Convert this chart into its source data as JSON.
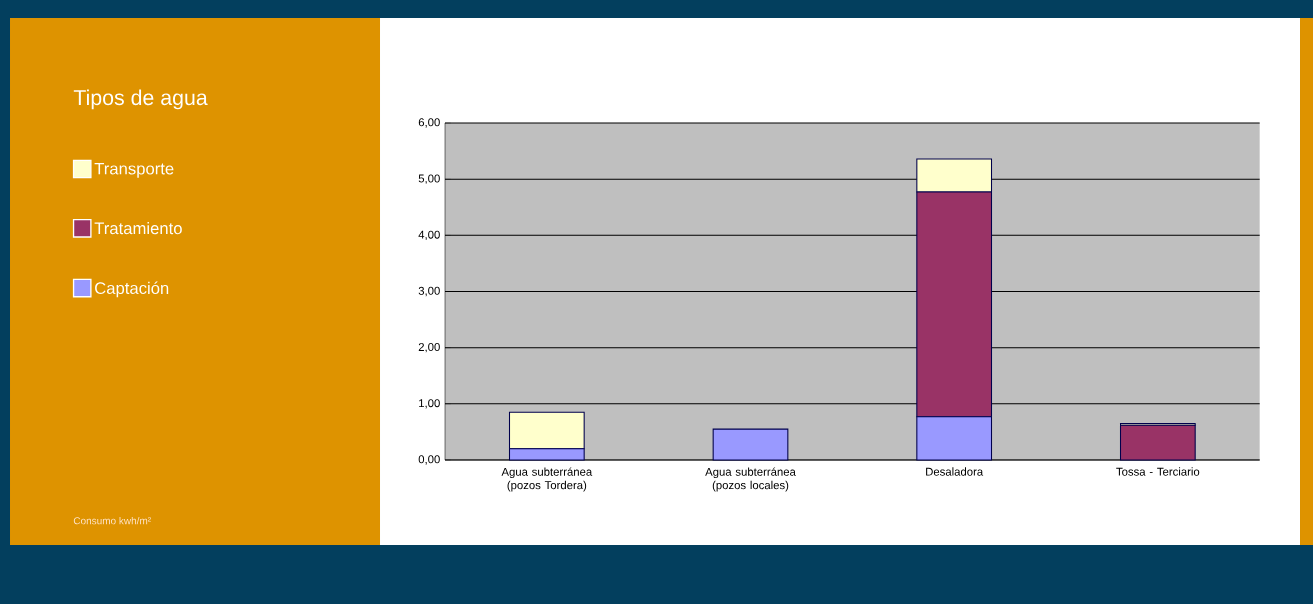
{
  "chart_data": {
    "type": "bar",
    "stacked": true,
    "categories": [
      "Agua subterránea (pozos Tordera)",
      "Agua subterránea (pozos locales)",
      "Desaladora",
      "Tossa - Terciario"
    ],
    "series": [
      {
        "name": "Captación",
        "color": "#9999ff",
        "values": [
          0.2,
          0.55,
          0.77,
          null
        ]
      },
      {
        "name": "Tratamiento",
        "color": "#993366",
        "values": [
          null,
          null,
          4.0,
          0.62
        ]
      },
      {
        "name": "Transporte",
        "color": "#ffffcc",
        "values": [
          0.65,
          null,
          0.59,
          0.03
        ]
      }
    ],
    "ylim": [
      0,
      6
    ],
    "yticks": [
      {
        "value": 0,
        "label": "0,00"
      },
      {
        "value": 1,
        "label": "1,00"
      },
      {
        "value": 2,
        "label": "2,00"
      },
      {
        "value": 3,
        "label": "3,00"
      },
      {
        "value": 4,
        "label": "4,00"
      },
      {
        "value": 5,
        "label": "5,00"
      },
      {
        "value": 6,
        "label": "6,00"
      }
    ],
    "grid": "y",
    "legend": "left",
    "legend_title": "Tipos de agua",
    "annotations": [
      "Consumo kwh/m²"
    ]
  }
}
